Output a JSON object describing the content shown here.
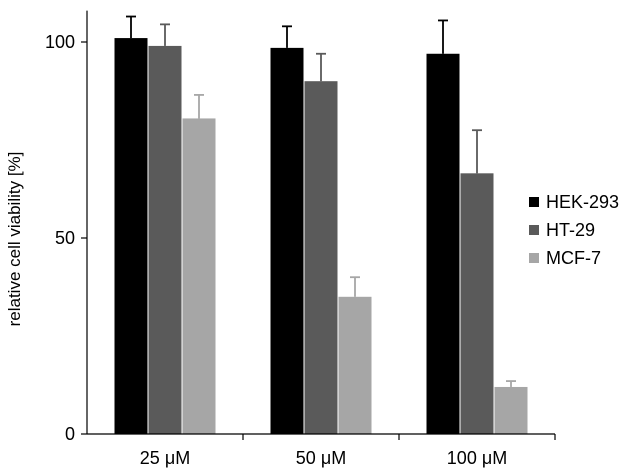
{
  "chart_data": {
    "type": "bar",
    "categories": [
      "25 μM",
      "50 μM",
      "100 μM"
    ],
    "series": [
      {
        "name": "HEK-293",
        "color": "#000000",
        "values": [
          101,
          98.5,
          97
        ],
        "errors": [
          5.5,
          5.5,
          8.5
        ]
      },
      {
        "name": "HT-29",
        "color": "#5a5a5a",
        "values": [
          99,
          90,
          66.5
        ],
        "errors": [
          5.5,
          7,
          11
        ]
      },
      {
        "name": "MCF-7",
        "color": "#a6a6a6",
        "values": [
          80.5,
          35,
          12
        ],
        "errors": [
          6,
          5,
          1.5
        ]
      }
    ],
    "ylabel": "relative cell viability [%]",
    "xlabel": "",
    "ylim": [
      0,
      108
    ],
    "yticks": [
      0,
      50,
      100
    ],
    "legend_position": "right",
    "grid": false
  }
}
